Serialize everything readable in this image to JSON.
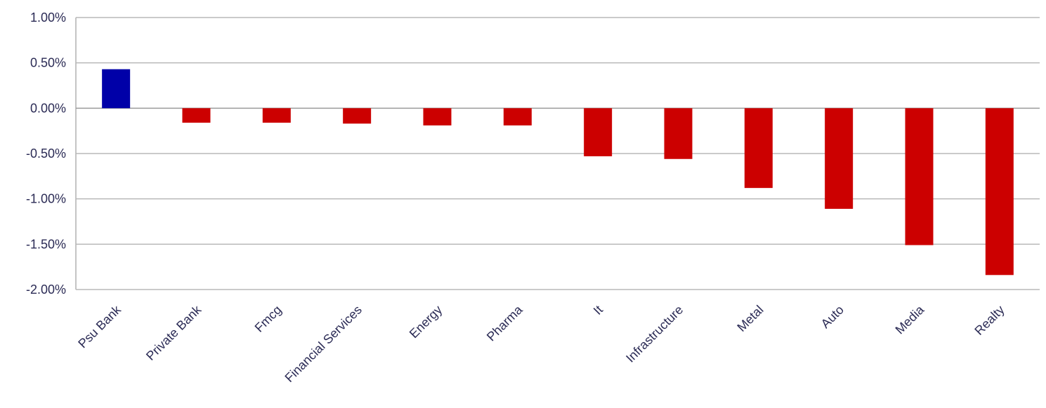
{
  "chart_data": {
    "type": "bar",
    "title": "",
    "xlabel": "",
    "ylabel": "",
    "categories": [
      "Psu Bank",
      "Private Bank",
      "Fmcg",
      "Financial Services",
      "Energy",
      "Pharma",
      "It",
      "Infrastructure",
      "Metal",
      "Auto",
      "Media",
      "Realty"
    ],
    "values": [
      0.43,
      -0.16,
      -0.16,
      -0.17,
      -0.19,
      -0.19,
      -0.53,
      -0.56,
      -0.88,
      -1.11,
      -1.51,
      -1.84
    ],
    "ylim": [
      -2.0,
      1.0
    ],
    "yticks": [
      1.0,
      0.5,
      0.0,
      -0.5,
      -1.0,
      -1.5,
      -2.0
    ],
    "ytick_labels": [
      "1.00%",
      "0.50%",
      "0.00%",
      "-0.50%",
      "-1.00%",
      "-1.50%",
      "-2.00%"
    ],
    "grid": true,
    "colors": {
      "positive": "#0000a8",
      "negative": "#cc0000",
      "text": "#2b2b55",
      "grid": "#b8b8b8"
    }
  }
}
